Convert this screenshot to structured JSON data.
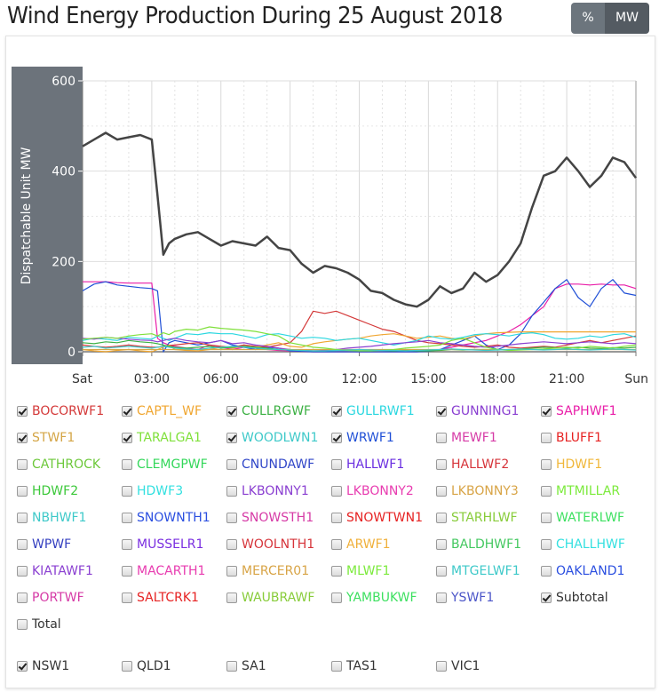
{
  "header": {
    "title": "Wind Energy Production During 25 August 2018",
    "units_toggle": [
      {
        "label": "%",
        "active": false
      },
      {
        "label": "MW",
        "active": true
      }
    ]
  },
  "chart_data": {
    "type": "line",
    "title": "Wind Energy Production During 25 August 2018",
    "xlabel": "",
    "ylabel": "Dispatchable Unit MW",
    "ylim": [
      0,
      600
    ],
    "yticks": [
      "0",
      "200",
      "400",
      "600"
    ],
    "xlim_hours": [
      0,
      24
    ],
    "xticks": [
      {
        "h": 0,
        "label": "Sat"
      },
      {
        "h": 3,
        "label": "03:00"
      },
      {
        "h": 6,
        "label": "06:00"
      },
      {
        "h": 9,
        "label": "09:00"
      },
      {
        "h": 12,
        "label": "12:00"
      },
      {
        "h": 15,
        "label": "15:00"
      },
      {
        "h": 18,
        "label": "18:00"
      },
      {
        "h": 21,
        "label": "21:00"
      },
      {
        "h": 24,
        "label": "Sun"
      }
    ],
    "grid": true,
    "x_hours": [
      0,
      0.5,
      1,
      1.5,
      2,
      2.5,
      3,
      3.25,
      3.5,
      3.75,
      4,
      4.5,
      5,
      5.5,
      6,
      6.5,
      7,
      7.5,
      8,
      8.5,
      9,
      9.5,
      10,
      10.5,
      11,
      11.5,
      12,
      12.5,
      13,
      13.5,
      14,
      14.5,
      15,
      15.5,
      16,
      16.5,
      17,
      17.5,
      18,
      18.5,
      19,
      19.5,
      20,
      20.5,
      21,
      21.5,
      22,
      22.5,
      23,
      23.5,
      24
    ],
    "series": [
      {
        "name": "Subtotal",
        "color": "#444444",
        "values": [
          455,
          470,
          485,
          470,
          475,
          480,
          470,
          345,
          215,
          240,
          250,
          260,
          265,
          250,
          235,
          245,
          240,
          235,
          255,
          230,
          225,
          195,
          175,
          190,
          185,
          175,
          160,
          135,
          130,
          115,
          105,
          100,
          115,
          145,
          130,
          140,
          175,
          155,
          170,
          200,
          240,
          320,
          390,
          400,
          430,
          400,
          365,
          390,
          430,
          420,
          385
        ]
      },
      {
        "name": "SAPHWF1",
        "color": "#e91ea8",
        "values": [
          155,
          155,
          155,
          153,
          152,
          152,
          152,
          30,
          20,
          15,
          12,
          8,
          5,
          15,
          10,
          5,
          10,
          8,
          5,
          3,
          2,
          1,
          0,
          0,
          0,
          0,
          0,
          0,
          0,
          0,
          0,
          0,
          2,
          5,
          10,
          15,
          20,
          25,
          35,
          45,
          60,
          80,
          100,
          140,
          150,
          150,
          148,
          150,
          148,
          148,
          140
        ]
      },
      {
        "name": "WRWF1",
        "color": "#1f4fd6",
        "values": [
          135,
          150,
          155,
          148,
          145,
          142,
          140,
          135,
          0,
          20,
          25,
          20,
          15,
          20,
          25,
          15,
          10,
          5,
          10,
          8,
          2,
          1,
          0,
          0,
          0,
          0,
          0,
          0,
          0,
          0,
          0,
          0,
          1,
          5,
          15,
          25,
          35,
          15,
          5,
          15,
          40,
          80,
          110,
          140,
          160,
          120,
          100,
          140,
          160,
          130,
          125
        ]
      },
      {
        "name": "BOCORWF1",
        "color": "#d43a3a",
        "values": [
          15,
          12,
          10,
          12,
          15,
          12,
          10,
          10,
          12,
          14,
          15,
          18,
          20,
          15,
          12,
          10,
          15,
          12,
          10,
          15,
          20,
          45,
          90,
          85,
          90,
          80,
          70,
          60,
          50,
          45,
          35,
          25,
          20,
          18,
          15,
          12,
          10,
          12,
          15,
          10,
          8,
          10,
          12,
          10,
          15,
          20,
          25,
          20,
          25,
          30,
          35
        ]
      },
      {
        "name": "CAPTL_WF",
        "color": "#f0a630",
        "values": [
          5,
          2,
          0,
          3,
          5,
          2,
          0,
          5,
          10,
          15,
          5,
          3,
          2,
          5,
          10,
          8,
          12,
          10,
          15,
          20,
          12,
          10,
          18,
          22,
          25,
          28,
          30,
          35,
          38,
          40,
          35,
          30,
          32,
          35,
          30,
          28,
          35,
          40,
          42,
          43,
          44,
          44,
          44,
          44,
          44,
          44,
          44,
          44,
          44,
          44,
          44
        ]
      },
      {
        "name": "CULLRGWF",
        "color": "#3cb043",
        "values": [
          20,
          18,
          22,
          20,
          25,
          22,
          20,
          18,
          15,
          12,
          10,
          8,
          10,
          12,
          8,
          10,
          12,
          10,
          8,
          5,
          5,
          3,
          2,
          2,
          3,
          3,
          5,
          4,
          3,
          2,
          3,
          2,
          2,
          3,
          5,
          4,
          5,
          5,
          4,
          5,
          6,
          8,
          10,
          9,
          8,
          10,
          8,
          7,
          9,
          8,
          10
        ]
      },
      {
        "name": "GULLRWF1",
        "color": "#2ad7e0",
        "values": [
          25,
          30,
          28,
          25,
          32,
          30,
          28,
          35,
          30,
          25,
          30,
          40,
          38,
          42,
          40,
          40,
          35,
          30,
          38,
          40,
          35,
          30,
          32,
          30,
          25,
          28,
          30,
          25,
          20,
          15,
          20,
          25,
          35,
          30,
          28,
          32,
          38,
          40,
          38,
          35,
          40,
          42,
          38,
          30,
          28,
          30,
          35,
          32,
          38,
          40,
          32
        ]
      },
      {
        "name": "GUNNING1",
        "color": "#8a3fd1",
        "values": [
          30,
          28,
          32,
          30,
          28,
          26,
          25,
          22,
          25,
          28,
          30,
          25,
          22,
          20,
          25,
          18,
          20,
          15,
          12,
          8,
          5,
          3,
          2,
          3,
          5,
          8,
          10,
          12,
          15,
          18,
          20,
          22,
          25,
          20,
          18,
          15,
          12,
          10,
          12,
          15,
          18,
          20,
          22,
          20,
          18,
          20,
          22,
          20,
          18,
          20,
          18
        ]
      },
      {
        "name": "STWF1",
        "color": "#d4a546",
        "values": [
          5,
          5,
          5,
          5,
          5,
          5,
          5,
          5,
          5,
          5,
          5,
          5,
          5,
          5,
          5,
          5,
          5,
          5,
          5,
          5,
          5,
          5,
          5,
          5,
          5,
          5,
          5,
          5,
          5,
          5,
          5,
          5,
          5,
          5,
          5,
          5,
          5,
          5,
          5,
          5,
          5,
          5,
          5,
          5,
          5,
          5,
          5,
          5,
          5,
          5,
          5
        ]
      },
      {
        "name": "TARALGA1",
        "color": "#7fe03a",
        "values": [
          28,
          30,
          32,
          30,
          35,
          38,
          40,
          35,
          42,
          38,
          45,
          50,
          48,
          55,
          52,
          50,
          48,
          45,
          40,
          35,
          20,
          15,
          10,
          8,
          5,
          3,
          2,
          2,
          3,
          5,
          8,
          10,
          12,
          15,
          25,
          30,
          20,
          10,
          5,
          3,
          4,
          5,
          6,
          8,
          10,
          8,
          12,
          10,
          8,
          12,
          15
        ]
      },
      {
        "name": "WOODLWN1",
        "color": "#3ec9c9",
        "values": [
          10,
          12,
          8,
          10,
          12,
          10,
          8,
          10,
          12,
          10,
          8,
          6,
          5,
          8,
          10,
          12,
          10,
          8,
          6,
          5,
          4,
          3,
          2,
          2,
          3,
          4,
          5,
          4,
          3,
          3,
          2,
          3,
          4,
          5,
          6,
          5,
          4,
          3,
          4,
          5,
          6,
          5,
          4,
          5,
          6,
          5,
          4,
          5,
          6,
          5,
          4
        ]
      }
    ]
  },
  "legend": {
    "items": [
      {
        "label": "BOCORWF1",
        "color": "#d43a3a",
        "checked": true
      },
      {
        "label": "CAPTL_WF",
        "color": "#f0a630",
        "checked": true
      },
      {
        "label": "CULLRGWF",
        "color": "#3cb043",
        "checked": true
      },
      {
        "label": "GULLRWF1",
        "color": "#2ad7e0",
        "checked": true
      },
      {
        "label": "GUNNING1",
        "color": "#8a3fd1",
        "checked": true
      },
      {
        "label": "SAPHWF1",
        "color": "#e91ea8",
        "checked": true
      },
      {
        "label": "STWF1",
        "color": "#d4a546",
        "checked": true
      },
      {
        "label": "TARALGA1",
        "color": "#7fe03a",
        "checked": true
      },
      {
        "label": "WOODLWN1",
        "color": "#3ec9c9",
        "checked": true
      },
      {
        "label": "WRWF1",
        "color": "#1f4fd6",
        "checked": true
      },
      {
        "label": "MEWF1",
        "color": "#d63aa6",
        "checked": false
      },
      {
        "label": "BLUFF1",
        "color": "#e62222",
        "checked": false
      },
      {
        "label": "CATHROCK",
        "color": "#6cc83a",
        "checked": false
      },
      {
        "label": "CLEMGPWF",
        "color": "#33d75a",
        "checked": false
      },
      {
        "label": "CNUNDAWF",
        "color": "#3046c8",
        "checked": false
      },
      {
        "label": "HALLWF1",
        "color": "#6a2ee0",
        "checked": false
      },
      {
        "label": "HALLWF2",
        "color": "#d6343a",
        "checked": false
      },
      {
        "label": "HDWF1",
        "color": "#f0b73a",
        "checked": false
      },
      {
        "label": "HDWF2",
        "color": "#3cc83a",
        "checked": false
      },
      {
        "label": "HDWF3",
        "color": "#33e0e0",
        "checked": false
      },
      {
        "label": "LKBONNY1",
        "color": "#8a3fd1",
        "checked": false
      },
      {
        "label": "LKBONNY2",
        "color": "#e83cb0",
        "checked": false
      },
      {
        "label": "LKBONNY3",
        "color": "#d8a446",
        "checked": false
      },
      {
        "label": "MTMILLAR",
        "color": "#7cea3c",
        "checked": false
      },
      {
        "label": "NBHWF1",
        "color": "#3ec9c9",
        "checked": false
      },
      {
        "label": "SNOWNTH1",
        "color": "#2b4fe0",
        "checked": false
      },
      {
        "label": "SNOWSTH1",
        "color": "#d63aa6",
        "checked": false
      },
      {
        "label": "SNOWTWN1",
        "color": "#e62222",
        "checked": false
      },
      {
        "label": "STARHLWF",
        "color": "#88cc3a",
        "checked": false
      },
      {
        "label": "WATERLWF",
        "color": "#3de060",
        "checked": false
      },
      {
        "label": "WPWF",
        "color": "#3540c0",
        "checked": false
      },
      {
        "label": "MUSSELR1",
        "color": "#7a2ee0",
        "checked": false
      },
      {
        "label": "WOOLNTH1",
        "color": "#d6343a",
        "checked": false
      },
      {
        "label": "ARWF1",
        "color": "#f0b03a",
        "checked": false
      },
      {
        "label": "BALDHWF1",
        "color": "#44c860",
        "checked": false
      },
      {
        "label": "CHALLHWF",
        "color": "#33e0e0",
        "checked": false
      },
      {
        "label": "KIATAWF1",
        "color": "#8a3fd1",
        "checked": false
      },
      {
        "label": "MACARTH1",
        "color": "#e83cb0",
        "checked": false
      },
      {
        "label": "MERCER01",
        "color": "#d8a446",
        "checked": false
      },
      {
        "label": "MLWF1",
        "color": "#7cea3c",
        "checked": false
      },
      {
        "label": "MTGELWF1",
        "color": "#3ec9c9",
        "checked": false
      },
      {
        "label": "OAKLAND1",
        "color": "#2b4fe0",
        "checked": false
      },
      {
        "label": "PORTWF",
        "color": "#d63aa6",
        "checked": false
      },
      {
        "label": "SALTCRK1",
        "color": "#e62222",
        "checked": false
      },
      {
        "label": "WAUBRAWF",
        "color": "#88cc3a",
        "checked": false
      },
      {
        "label": "YAMBUKWF",
        "color": "#3de060",
        "checked": false
      },
      {
        "label": "YSWF1",
        "color": "#4b55c8",
        "checked": false
      },
      {
        "label": "Subtotal",
        "color": "#333333",
        "checked": true
      },
      {
        "label": "Total",
        "color": "#333333",
        "checked": false
      }
    ]
  },
  "regions": [
    {
      "label": "NSW1",
      "checked": true
    },
    {
      "label": "QLD1",
      "checked": false
    },
    {
      "label": "SA1",
      "checked": false
    },
    {
      "label": "TAS1",
      "checked": false
    },
    {
      "label": "VIC1",
      "checked": false
    }
  ]
}
